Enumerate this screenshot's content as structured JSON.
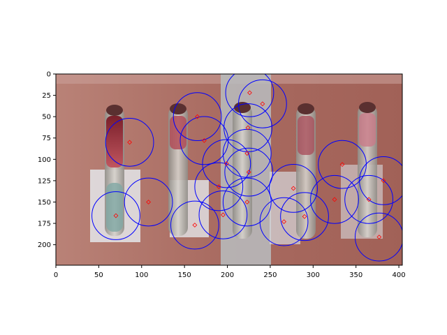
{
  "chart_data": {
    "type": "scatter",
    "title": "",
    "xlabel": "",
    "ylabel": "",
    "xlim": [
      0,
      404
    ],
    "ylim": [
      224,
      0
    ],
    "y_inverted": true,
    "xticks": [
      0,
      50,
      100,
      150,
      200,
      250,
      300,
      350,
      400
    ],
    "yticks": [
      0,
      25,
      50,
      75,
      100,
      125,
      150,
      175,
      200
    ],
    "background": "photograph of laboratory vials on a reddish bench",
    "grid": false,
    "circle_color": "#0000ff",
    "center_color": "#ff0000",
    "circle_radius": 28,
    "centers": [
      {
        "x": 86,
        "y": 80
      },
      {
        "x": 108,
        "y": 150
      },
      {
        "x": 70,
        "y": 166
      },
      {
        "x": 165,
        "y": 50
      },
      {
        "x": 173,
        "y": 78
      },
      {
        "x": 162,
        "y": 177
      },
      {
        "x": 199,
        "y": 105
      },
      {
        "x": 190,
        "y": 132
      },
      {
        "x": 195,
        "y": 165
      },
      {
        "x": 226,
        "y": 22
      },
      {
        "x": 241,
        "y": 35
      },
      {
        "x": 224,
        "y": 63
      },
      {
        "x": 223,
        "y": 93
      },
      {
        "x": 225,
        "y": 115
      },
      {
        "x": 223,
        "y": 150
      },
      {
        "x": 266,
        "y": 173
      },
      {
        "x": 277,
        "y": 134
      },
      {
        "x": 290,
        "y": 167
      },
      {
        "x": 325,
        "y": 147
      },
      {
        "x": 334,
        "y": 106
      },
      {
        "x": 365,
        "y": 147
      },
      {
        "x": 382,
        "y": 125
      },
      {
        "x": 377,
        "y": 191
      }
    ]
  }
}
